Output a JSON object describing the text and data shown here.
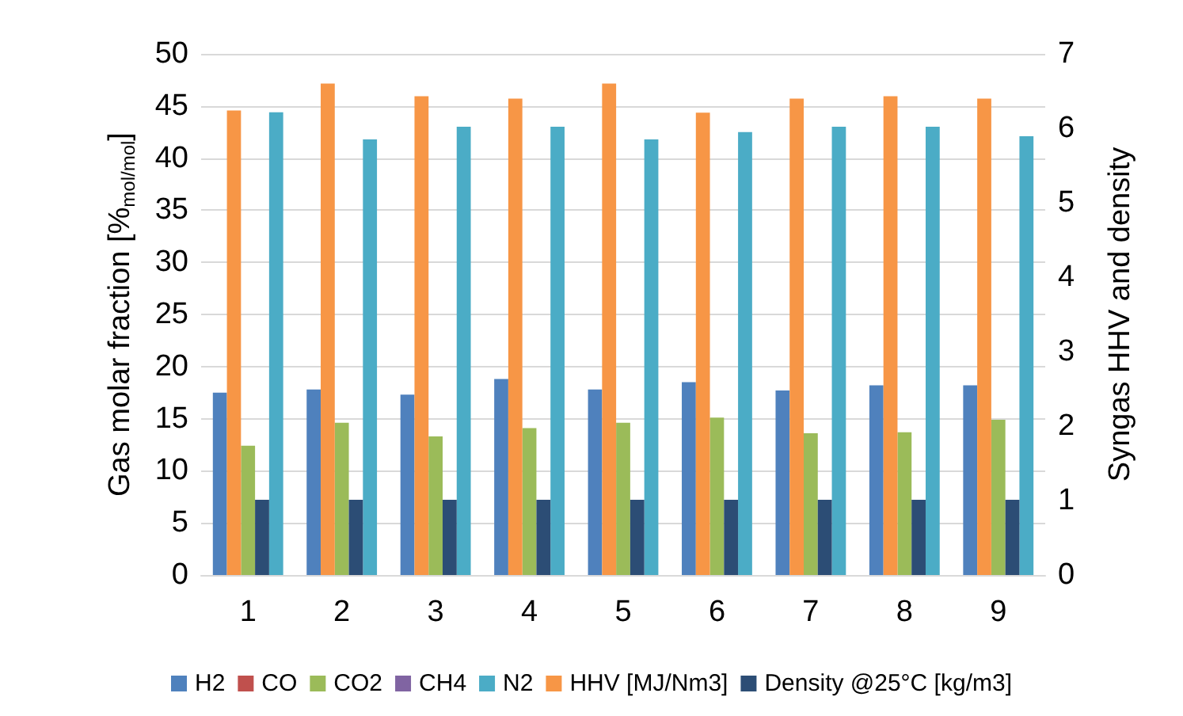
{
  "chart_data": {
    "type": "bar",
    "categories": [
      "1",
      "2",
      "3",
      "4",
      "5",
      "6",
      "7",
      "8",
      "9"
    ],
    "ylabel": "Gas molar fraction [%$_{mol/mol}$]",
    "y2label": "Syngas HHV and density",
    "ylim": [
      0,
      50
    ],
    "yticks": [
      0,
      5,
      10,
      15,
      20,
      25,
      30,
      35,
      40,
      45,
      50
    ],
    "y2lim": [
      0,
      7
    ],
    "y2ticks": [
      0,
      1,
      2,
      3,
      4,
      5,
      6,
      7
    ],
    "grid": "y",
    "legend": "bottom",
    "series": [
      {
        "name": "H2",
        "color": "#4f81bd",
        "values": [
          17.5,
          17.8,
          17.3,
          18.8,
          17.8,
          18.5,
          17.7,
          18.2,
          18.2
        ]
      },
      {
        "name": "CO",
        "color": "#c0504d",
        "values": [
          null,
          null,
          null,
          null,
          null,
          null,
          null,
          null,
          null
        ]
      },
      {
        "name": "CO2",
        "color": "#9bbb59",
        "values": [
          12.4,
          14.6,
          13.3,
          14.1,
          14.6,
          15.1,
          13.6,
          13.7,
          14.9
        ]
      },
      {
        "name": "CH4",
        "color": "#8064a2",
        "values": [
          null,
          null,
          null,
          null,
          null,
          null,
          null,
          null,
          null
        ]
      },
      {
        "name": "N2",
        "color": "#4bacc6",
        "values": [
          44.4,
          41.8,
          43.0,
          43.0,
          41.8,
          42.5,
          43.0,
          43.0,
          42.1
        ]
      },
      {
        "name": "HHV [MJ/Nm3]",
        "color": "#f79646",
        "axis": "y2",
        "values": [
          6.24,
          6.6,
          6.43,
          6.4,
          6.6,
          6.21,
          6.4,
          6.43,
          6.4
        ]
      },
      {
        "name": "Density @25°C [kg/m3]",
        "color": "#2c4d75",
        "axis": "y2",
        "values": [
          1.01,
          1.01,
          1.01,
          1.01,
          1.01,
          1.01,
          1.01,
          1.01,
          1.01
        ]
      }
    ]
  }
}
